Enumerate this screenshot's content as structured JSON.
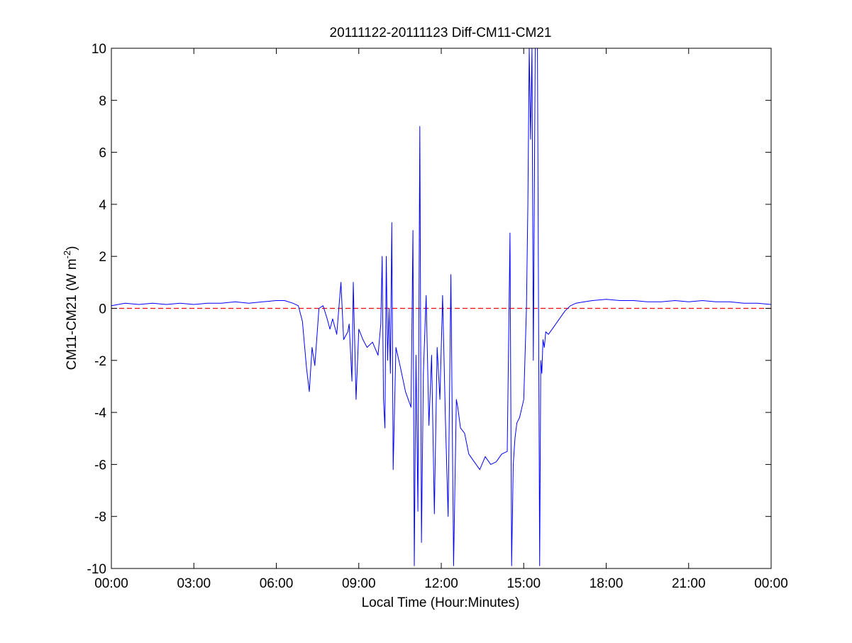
{
  "chart_data": {
    "type": "line",
    "title": "20111122-20111123 Diff-CM11-CM21",
    "xlabel": "Local Time (Hour:Minutes)",
    "ylabel_main": "CM11-CM21 (W m",
    "ylabel_sup": "-2",
    "ylabel_close": ")",
    "xlim": [
      0,
      24
    ],
    "ylim": [
      -10,
      10
    ],
    "grid": false,
    "x_ticks": [
      {
        "value": 0,
        "label": "00:00"
      },
      {
        "value": 3,
        "label": "03:00"
      },
      {
        "value": 6,
        "label": "06:00"
      },
      {
        "value": 9,
        "label": "09:00"
      },
      {
        "value": 12,
        "label": "12:00"
      },
      {
        "value": 15,
        "label": "15:00"
      },
      {
        "value": 18,
        "label": "18:00"
      },
      {
        "value": 21,
        "label": "21:00"
      },
      {
        "value": 24,
        "label": "00:00"
      }
    ],
    "y_ticks": [
      {
        "value": -10,
        "label": "-10"
      },
      {
        "value": -8,
        "label": "-8"
      },
      {
        "value": -6,
        "label": "-6"
      },
      {
        "value": -4,
        "label": "-4"
      },
      {
        "value": -2,
        "label": "-2"
      },
      {
        "value": 0,
        "label": "0"
      },
      {
        "value": 2,
        "label": "2"
      },
      {
        "value": 4,
        "label": "4"
      },
      {
        "value": 6,
        "label": "6"
      },
      {
        "value": 8,
        "label": "8"
      },
      {
        "value": 10,
        "label": "10"
      }
    ],
    "reference_line": {
      "y": 0,
      "style": "dashed",
      "color": "#ff0000"
    },
    "series": [
      {
        "color": "#0000ff",
        "x": [
          0,
          0.5,
          1,
          1.5,
          2,
          2.5,
          3,
          3.5,
          4,
          4.5,
          5,
          5.5,
          6,
          6.3,
          6.6,
          6.8,
          6.95,
          7.1,
          7.2,
          7.3,
          7.4,
          7.55,
          7.7,
          7.85,
          7.95,
          8.05,
          8.2,
          8.35,
          8.45,
          8.6,
          8.65,
          8.75,
          8.8,
          8.9,
          9.0,
          9.15,
          9.3,
          9.5,
          9.7,
          9.8,
          9.85,
          9.9,
          9.95,
          10.0,
          10.05,
          10.1,
          10.15,
          10.2,
          10.25,
          10.35,
          10.5,
          10.7,
          10.9,
          10.97,
          11.02,
          11.08,
          11.15,
          11.22,
          11.28,
          11.35,
          11.45,
          11.55,
          11.65,
          11.75,
          11.85,
          11.95,
          12.05,
          12.15,
          12.25,
          12.35,
          12.45,
          12.55,
          12.6,
          12.7,
          12.85,
          13.0,
          13.2,
          13.4,
          13.6,
          13.8,
          14.0,
          14.2,
          14.4,
          14.5,
          14.56,
          14.62,
          14.68,
          14.75,
          14.85,
          15.0,
          15.1,
          15.15,
          15.2,
          15.25,
          15.3,
          15.35,
          15.42,
          15.5,
          15.58,
          15.62,
          15.66,
          15.7,
          15.75,
          15.8,
          15.9,
          16.1,
          16.3,
          16.5,
          16.7,
          16.9,
          17.2,
          17.5,
          18.0,
          18.5,
          19.0,
          19.5,
          20.0,
          20.5,
          21.0,
          21.5,
          22.0,
          22.5,
          23.0,
          23.5,
          24.0
        ],
        "y": [
          0.1,
          0.2,
          0.15,
          0.2,
          0.15,
          0.2,
          0.15,
          0.2,
          0.2,
          0.25,
          0.2,
          0.25,
          0.3,
          0.3,
          0.2,
          0.1,
          -0.5,
          -2.3,
          -3.2,
          -1.5,
          -2.2,
          0.0,
          0.1,
          -0.4,
          -0.8,
          -0.4,
          -1.0,
          1.0,
          -1.2,
          -0.9,
          -0.6,
          -2.8,
          1.0,
          -3.5,
          -0.8,
          -1.2,
          -1.5,
          -1.3,
          -1.8,
          -0.6,
          2.0,
          -3.5,
          -4.6,
          2.0,
          -2.0,
          0.0,
          -2.5,
          3.3,
          -6.2,
          -1.5,
          -2.2,
          -3.2,
          -3.8,
          3.0,
          -9.9,
          -1.8,
          -7.8,
          7.0,
          -9.0,
          -2.5,
          0.5,
          -4.5,
          -1.8,
          -7.9,
          -1.5,
          -3.5,
          0.5,
          -4.2,
          -8.0,
          1.3,
          -9.9,
          -3.5,
          -3.8,
          -4.6,
          -4.8,
          -5.6,
          -5.9,
          -6.2,
          -5.7,
          -6.0,
          -5.9,
          -5.6,
          -5.5,
          2.9,
          -9.9,
          -6.0,
          -5.0,
          -4.4,
          -4.2,
          -3.5,
          0.0,
          4.0,
          10.0,
          6.5,
          10.0,
          -2.0,
          10.0,
          10.0,
          -9.9,
          -2.0,
          -2.5,
          -1.2,
          -1.5,
          -0.9,
          -1.0,
          -0.7,
          -0.4,
          -0.1,
          0.1,
          0.2,
          0.25,
          0.3,
          0.35,
          0.3,
          0.3,
          0.25,
          0.25,
          0.3,
          0.25,
          0.3,
          0.25,
          0.25,
          0.2,
          0.2,
          0.15
        ]
      }
    ]
  }
}
